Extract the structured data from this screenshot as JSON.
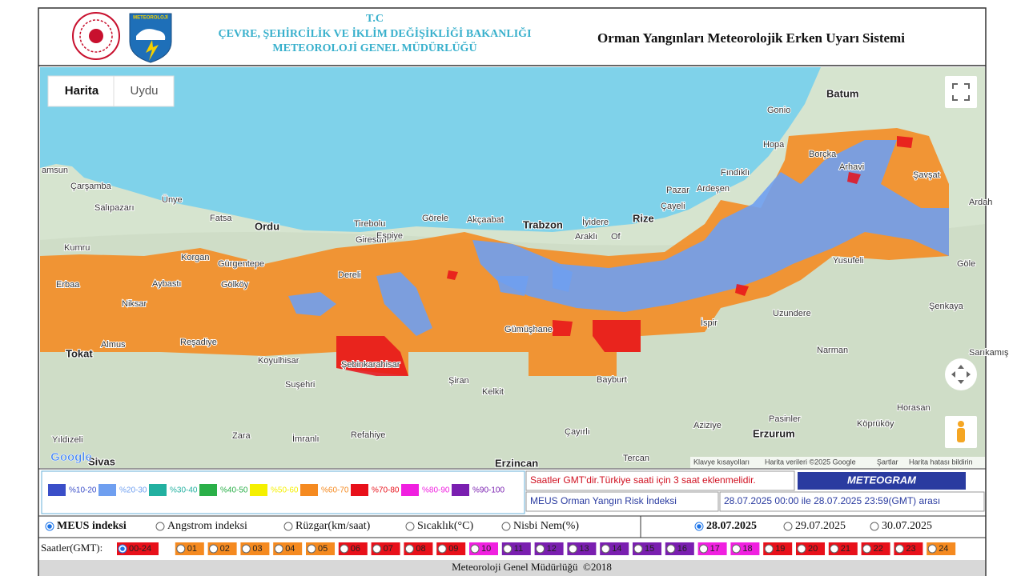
{
  "header": {
    "line1": "T.C",
    "line2": "ÇEVRE, ŞEHİRCİLİK VE İKLİM DEĞİŞİKLİĞİ BAKANLIĞI",
    "line3": "METEOROLOJİ GENEL MÜDÜRLÜĞÜ",
    "logo_text": "METEOROLOJİ",
    "title": "Orman Yangınları Meteorolojik Erken Uyarı Sistemi"
  },
  "map": {
    "tabs": [
      "Harita",
      "Uydu"
    ],
    "places": [
      "amsun",
      "Çarşamba",
      "Salıpazarı",
      "Ünye",
      "Fatsa",
      "Ordu",
      "Kumru",
      "Korgan",
      "Gürgentepe",
      "Gölköy",
      "Aybastı",
      "Erbaa",
      "Niksar",
      "Almus",
      "Tokat",
      "Reşadiye",
      "Koyulhisar",
      "Suşehri",
      "Şebinkarahisar",
      "Dereli",
      "Giresun",
      "Tirebolu",
      "Espiye",
      "Görele",
      "Akçaabat",
      "Trabzon",
      "İyidere",
      "Araklı",
      "Of",
      "Rize",
      "Pazar",
      "Ardeşen",
      "Çayeli",
      "Fındıklı",
      "Hopa",
      "Batum",
      "Gonio",
      "Borçka",
      "Arhavi",
      "Şavşat",
      "Ardah",
      "Yusufeli",
      "Göle",
      "İspir",
      "Uzundere",
      "Şenkaya",
      "Narman",
      "Sarıkamış",
      "Bayburt",
      "Gümüşhane",
      "Şiran",
      "Kelkit",
      "Refahiye",
      "İmranlı",
      "Zara",
      "Yıldızeli",
      "Sivas",
      "Erzincan",
      "Çayırlı",
      "Tercan",
      "Aziziye",
      "Erzurum",
      "Pasinler",
      "Köprüköy",
      "Horasan"
    ],
    "logo": "Google",
    "attribution": [
      "Klavye kısayolları",
      "Harita verileri ©2025 Google",
      "Şartlar",
      "Harita hatası bildirin"
    ]
  },
  "legend": [
    {
      "label": "%10-20",
      "color": "#3a4ec8"
    },
    {
      "label": "%20-30",
      "color": "#6f9ff0"
    },
    {
      "label": "%30-40",
      "color": "#22b0a0"
    },
    {
      "label": "%40-50",
      "color": "#2aaf48"
    },
    {
      "label": "%50-60",
      "color": "#f5f000"
    },
    {
      "label": "%60-70",
      "color": "#f58a20"
    },
    {
      "label": "%70-80",
      "color": "#e8101a"
    },
    {
      "label": "%80-90",
      "color": "#f020e0"
    },
    {
      "label": "%90-100",
      "color": "#7a1fb0"
    }
  ],
  "info": {
    "note": "Saatler GMT'dir.Türkiye saati için 3 saat eklenmelidir.",
    "button": "METEOGRAM",
    "index_name": "MEUS Orman Yangın Risk İndeksi",
    "period": "28.07.2025 00:00 ile 28.07.2025 23:59(GMT) arası"
  },
  "parameters": [
    "MEUS indeksi",
    "Angstrom indeksi",
    "Rüzgar(km/saat)",
    "Sıcaklık(°C)",
    "Nisbi Nem(%)"
  ],
  "dates": [
    "28.07.2025",
    "29.07.2025",
    "30.07.2025"
  ],
  "hours_label": "Saatler(GMT):",
  "hours": [
    {
      "label": "00-24",
      "color": "#e8101a"
    },
    {
      "label": "01",
      "color": "#f58a20"
    },
    {
      "label": "02",
      "color": "#f58a20"
    },
    {
      "label": "03",
      "color": "#f58a20"
    },
    {
      "label": "04",
      "color": "#f58a20"
    },
    {
      "label": "05",
      "color": "#f58a20"
    },
    {
      "label": "06",
      "color": "#e8101a"
    },
    {
      "label": "07",
      "color": "#e8101a"
    },
    {
      "label": "08",
      "color": "#e8101a"
    },
    {
      "label": "09",
      "color": "#e8101a"
    },
    {
      "label": "10",
      "color": "#f020e0"
    },
    {
      "label": "11",
      "color": "#7a1fb0"
    },
    {
      "label": "12",
      "color": "#7a1fb0"
    },
    {
      "label": "13",
      "color": "#7a1fb0"
    },
    {
      "label": "14",
      "color": "#7a1fb0"
    },
    {
      "label": "15",
      "color": "#7a1fb0"
    },
    {
      "label": "16",
      "color": "#7a1fb0"
    },
    {
      "label": "17",
      "color": "#f020e0"
    },
    {
      "label": "18",
      "color": "#f020e0"
    },
    {
      "label": "19",
      "color": "#e8101a"
    },
    {
      "label": "20",
      "color": "#e8101a"
    },
    {
      "label": "21",
      "color": "#e8101a"
    },
    {
      "label": "22",
      "color": "#e8101a"
    },
    {
      "label": "23",
      "color": "#e8101a"
    },
    {
      "label": "24",
      "color": "#f58a20"
    }
  ],
  "footer": "Meteoroloji Genel Müdürlüğü  ©2018"
}
